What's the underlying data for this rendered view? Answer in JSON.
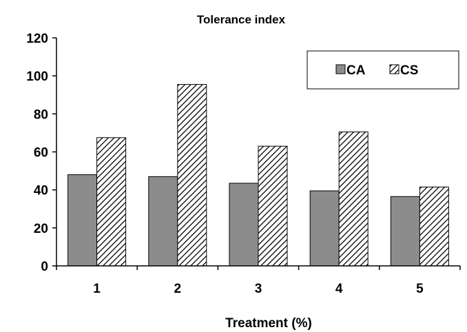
{
  "chart_data": {
    "type": "bar",
    "title": "Tolerance index",
    "xlabel": "Treatment (%)",
    "ylabel": "",
    "categories": [
      "1",
      "2",
      "3",
      "4",
      "5"
    ],
    "series": [
      {
        "name": "CA",
        "values": [
          48,
          47,
          43.5,
          39.5,
          36.5
        ],
        "color": "#8c8c8c",
        "pattern": "solid"
      },
      {
        "name": "CS",
        "values": [
          67.5,
          95.5,
          63,
          70.5,
          41.5
        ],
        "color": "#000000",
        "pattern": "diagonal-hatch"
      }
    ],
    "ylim": [
      0,
      120
    ],
    "yticks": [
      "0",
      "20",
      "40",
      "60",
      "80",
      "100",
      "120"
    ],
    "grid": false,
    "legend_position": "top-right"
  }
}
